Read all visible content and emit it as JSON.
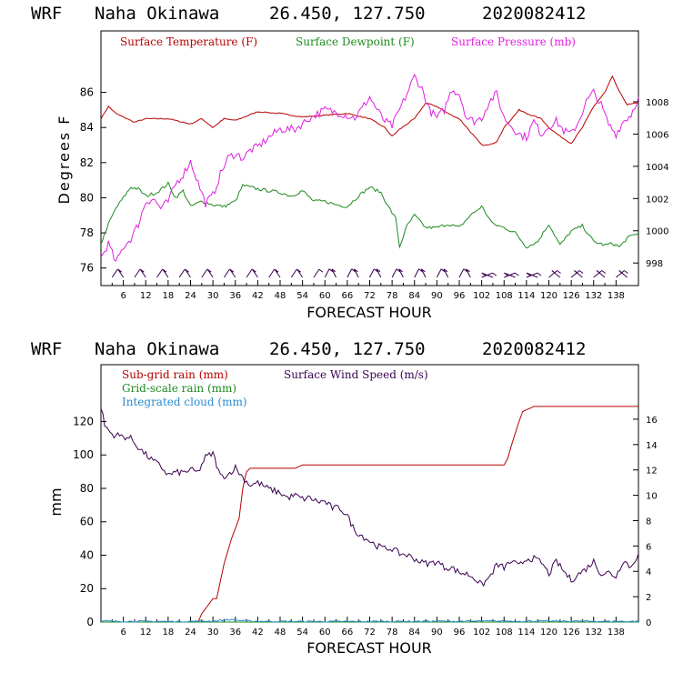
{
  "chart_data": [
    {
      "type": "line",
      "header": {
        "model": "WRF",
        "location": "Naha Okinawa",
        "coords": "26.450, 127.750",
        "run": "2020082412"
      },
      "xlabel": "FORECAST HOUR",
      "ylabel_left": "Degrees F",
      "xlim": [
        0,
        144
      ],
      "x_ticks": [
        6,
        12,
        18,
        24,
        30,
        36,
        42,
        48,
        54,
        60,
        66,
        72,
        78,
        84,
        90,
        96,
        102,
        108,
        114,
        120,
        126,
        132,
        138
      ],
      "ylim_left": [
        75,
        89.5
      ],
      "y_ticks_left": [
        76,
        78,
        80,
        82,
        84,
        86
      ],
      "ylim_right": [
        996.6,
        1012.4
      ],
      "y_ticks_right": [
        998,
        1000,
        1002,
        1004,
        1006,
        1008
      ],
      "series": [
        {
          "name": "Surface Temperature (F)",
          "axis": "left",
          "color": "#b80000",
          "x": [
            0,
            2,
            4,
            6,
            9,
            12,
            18,
            24,
            27,
            30,
            33,
            36,
            42,
            48,
            54,
            60,
            66,
            72,
            76,
            78,
            80,
            84,
            87,
            90,
            93,
            96,
            100,
            102,
            104,
            106,
            108,
            110,
            112,
            114,
            118,
            120,
            123,
            126,
            129,
            132,
            135,
            137,
            139,
            141,
            144
          ],
          "y": [
            84.5,
            85.2,
            84.8,
            84.6,
            84.3,
            84.5,
            84.5,
            84.2,
            84.5,
            84.0,
            84.5,
            84.4,
            84.9,
            84.8,
            84.6,
            84.7,
            84.8,
            84.5,
            84.0,
            83.5,
            83.9,
            84.5,
            85.4,
            85.2,
            84.8,
            84.5,
            83.5,
            83.0,
            83.0,
            83.2,
            84.0,
            84.5,
            85.0,
            84.8,
            84.5,
            84.0,
            83.5,
            83.1,
            84.0,
            85.2,
            86.0,
            86.9,
            86.0,
            85.3,
            85.4
          ]
        },
        {
          "name": "Surface Dewpoint (F)",
          "axis": "left",
          "color": "#1f8a1f",
          "x": [
            0,
            2,
            4,
            6,
            8,
            10,
            12,
            15,
            18,
            20,
            22,
            24,
            27,
            30,
            33,
            36,
            38,
            40,
            42,
            45,
            48,
            51,
            54,
            57,
            60,
            63,
            66,
            69,
            72,
            75,
            77,
            79,
            80,
            82,
            84,
            87,
            90,
            93,
            96,
            99,
            102,
            105,
            108,
            111,
            114,
            117,
            120,
            123,
            126,
            129,
            132,
            135,
            137,
            139,
            141,
            144
          ],
          "y": [
            77.4,
            78.5,
            79.4,
            80.0,
            80.6,
            80.5,
            80.1,
            80.3,
            80.8,
            80.0,
            80.4,
            79.5,
            79.8,
            79.6,
            79.5,
            79.8,
            80.7,
            80.6,
            80.5,
            80.4,
            80.3,
            80.1,
            80.4,
            79.8,
            79.8,
            79.6,
            79.5,
            80.1,
            80.6,
            80.3,
            79.5,
            78.8,
            77.2,
            78.4,
            79.0,
            78.3,
            78.3,
            78.5,
            78.3,
            79.0,
            79.5,
            78.5,
            78.3,
            78.0,
            77.2,
            77.5,
            78.5,
            77.3,
            78.1,
            78.4,
            77.5,
            77.3,
            77.4,
            77.2,
            77.7,
            78.0
          ]
        },
        {
          "name": "Surface Pressure (mb)",
          "axis": "right",
          "color": "#e020e0",
          "x": [
            0,
            2,
            4,
            6,
            8,
            10,
            12,
            14,
            16,
            18,
            20,
            22,
            24,
            26,
            28,
            30,
            32,
            34,
            36,
            38,
            40,
            42,
            45,
            48,
            52,
            56,
            60,
            64,
            68,
            70,
            72,
            74,
            76,
            78,
            80,
            82,
            84,
            86,
            88,
            90,
            92,
            94,
            96,
            98,
            100,
            102,
            104,
            106,
            108,
            110,
            112,
            114,
            116,
            118,
            120,
            122,
            124,
            126,
            128,
            130,
            132,
            134,
            136,
            138,
            140,
            142,
            144
          ],
          "y": [
            998.3,
            999.2,
            998.0,
            999.0,
            999.5,
            1000.4,
            1001.8,
            1002.0,
            1001.4,
            1001.8,
            1002.9,
            1003.5,
            1004.3,
            1003.0,
            1001.7,
            1002.2,
            1003.5,
            1004.5,
            1004.8,
            1004.5,
            1005.0,
            1005.2,
            1005.8,
            1006.3,
            1006.3,
            1007.0,
            1007.5,
            1007.3,
            1007.0,
            1007.6,
            1008.3,
            1007.5,
            1006.8,
            1006.5,
            1007.5,
            1008.5,
            1009.6,
            1008.8,
            1007.5,
            1007.0,
            1007.5,
            1008.8,
            1008.5,
            1007.0,
            1006.8,
            1007.0,
            1008.0,
            1008.5,
            1007.0,
            1006.5,
            1006.0,
            1005.8,
            1006.8,
            1006.0,
            1006.5,
            1006.8,
            1006.2,
            1006.0,
            1006.8,
            1008.0,
            1008.6,
            1007.8,
            1006.6,
            1006.0,
            1006.8,
            1007.2,
            1008.3
          ]
        }
      ],
      "legend": [
        "Surface Temperature (F)",
        "Surface Dewpoint (F)",
        "Surface Pressure (mb)"
      ],
      "wind_barb_color": "#3a0050"
    },
    {
      "type": "line",
      "header": {
        "model": "WRF",
        "location": "Naha Okinawa",
        "coords": "26.450, 127.750",
        "run": "2020082412"
      },
      "xlabel": "FORECAST HOUR",
      "ylabel_left": "mm",
      "xlim": [
        0,
        144
      ],
      "x_ticks": [
        6,
        12,
        18,
        24,
        30,
        36,
        42,
        48,
        54,
        60,
        66,
        72,
        78,
        84,
        90,
        96,
        102,
        108,
        114,
        120,
        126,
        132,
        138
      ],
      "ylim_left": [
        0,
        154
      ],
      "y_ticks_left": [
        0,
        20,
        40,
        60,
        80,
        100,
        120
      ],
      "ylim_right": [
        0,
        20.3
      ],
      "y_ticks_right": [
        0,
        2,
        4,
        6,
        8,
        10,
        12,
        14,
        16
      ],
      "series": [
        {
          "name": "Sub-grid rain (mm)",
          "axis": "left",
          "color": "#b80000",
          "x": [
            0,
            26,
            27,
            30,
            31,
            33,
            35,
            37,
            38,
            39,
            40,
            46,
            48,
            52,
            53,
            54,
            60,
            70,
            80,
            90,
            100,
            108,
            109,
            110,
            112,
            113,
            116,
            120,
            130,
            144
          ],
          "y": [
            0,
            0,
            5,
            14,
            14,
            35,
            50,
            62,
            80,
            90,
            92,
            92,
            92,
            92,
            93,
            94,
            94,
            94,
            94,
            94,
            94,
            94,
            98,
            106,
            120,
            126,
            129,
            129,
            129,
            129
          ]
        },
        {
          "name": "Grid-scale rain (mm)",
          "axis": "left",
          "color": "#1f8a1f",
          "x": [
            0,
            144
          ],
          "y": [
            0,
            0
          ]
        },
        {
          "name": "Integrated cloud (mm)",
          "axis": "left",
          "color": "#2a8ccc",
          "x": [
            0,
            20,
            30,
            34,
            40,
            60,
            100,
            110,
            144
          ],
          "y": [
            0.5,
            0.3,
            0.6,
            1.5,
            0.5,
            0.3,
            0.5,
            0.6,
            0.4
          ]
        },
        {
          "name": "Surface Wind Speed (m/s)",
          "axis": "right",
          "color": "#3a0050",
          "x": [
            0,
            1,
            3,
            5,
            8,
            10,
            12,
            14,
            16,
            18,
            20,
            22,
            24,
            26,
            28,
            30,
            32,
            34,
            36,
            38,
            40,
            42,
            45,
            48,
            50,
            52,
            54,
            56,
            58,
            60,
            62,
            64,
            66,
            68,
            70,
            72,
            74,
            76,
            78,
            80,
            82,
            84,
            86,
            88,
            90,
            92,
            94,
            96,
            98,
            100,
            102,
            104,
            106,
            108,
            110,
            112,
            114,
            116,
            118,
            120,
            122,
            124,
            126,
            128,
            130,
            132,
            134,
            136,
            138,
            140,
            142,
            144
          ],
          "y": [
            17.0,
            15.5,
            14.8,
            14.7,
            14.5,
            13.8,
            13.2,
            12.7,
            12.3,
            11.6,
            11.8,
            11.8,
            12.0,
            11.8,
            13.0,
            13.3,
            11.5,
            11.6,
            12.2,
            11.4,
            10.8,
            11.0,
            10.5,
            10.2,
            9.8,
            10.0,
            9.7,
            9.8,
            9.5,
            9.5,
            9.0,
            9.0,
            8.4,
            7.2,
            6.8,
            6.4,
            6.0,
            5.8,
            5.8,
            5.4,
            5.3,
            5.0,
            4.7,
            4.6,
            4.8,
            4.3,
            4.3,
            3.9,
            3.8,
            3.5,
            2.9,
            3.5,
            4.5,
            4.3,
            4.8,
            4.4,
            5.0,
            5.0,
            4.7,
            3.8,
            4.8,
            4.0,
            3.3,
            3.8,
            4.2,
            4.8,
            3.8,
            3.9,
            3.6,
            4.9,
            4.3,
            5.4
          ]
        }
      ],
      "legend": [
        "Sub-grid rain (mm)",
        "Surface Wind Speed (m/s)",
        "Grid-scale rain (mm)",
        "Integrated cloud (mm)"
      ]
    }
  ]
}
